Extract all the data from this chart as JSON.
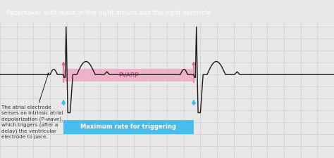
{
  "title": "Pacemaker with leads in the right atrium and the right ventricle",
  "title_bg": "#1e1e1e",
  "title_color": "#ffffff",
  "bg_color": "#e8e8e8",
  "grid_color": "#c8c8c8",
  "ecg_color": "#1a1a1a",
  "pvarp_color": "#f4a0c0",
  "pvarp_label": "PVARP",
  "pvarp_alpha": 0.75,
  "max_rate_color": "#40bbee",
  "max_rate_label": "Maximum rate for triggering",
  "annotation_text": "The atrial electrode\nsenses an intrinsic atrial\ndepolarization (P-wave),\nwhich triggers (after a\ndelay) the ventricular\nelectrode to pace.",
  "annotation_color": "#333333",
  "annotation_fontsize": 5.2,
  "p_wave_arrow_color": "#e060a0",
  "cyan_arrow_color": "#40bbee"
}
